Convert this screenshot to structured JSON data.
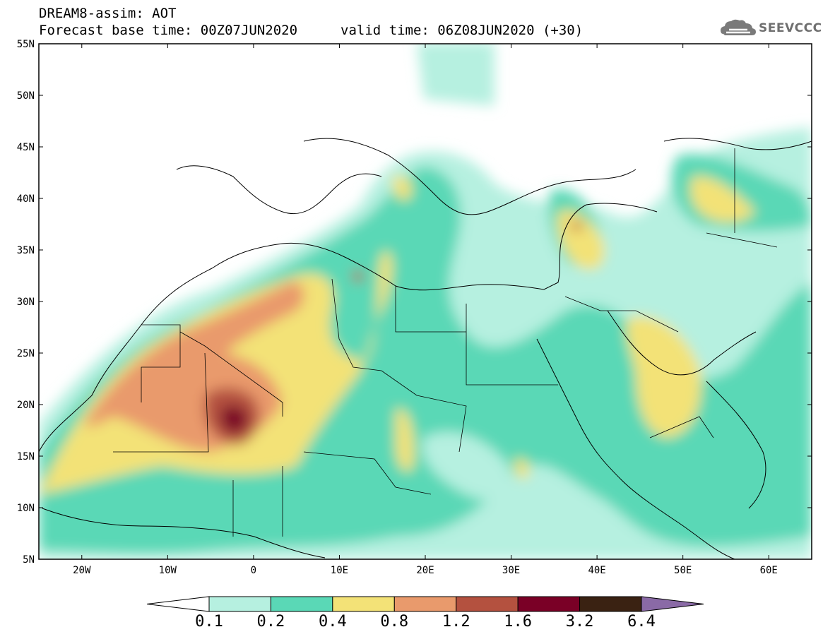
{
  "header": {
    "title": "DREAM8-assim: AOT",
    "base_time": "Forecast base time: 00Z07JUN2020",
    "valid_time": "valid time: 06Z08JUN2020 (+30)"
  },
  "logo": {
    "text": "SEEVCCC",
    "icon": "cloud-icon"
  },
  "map": {
    "variable": "Aerosol Optical Thickness",
    "lat_labels": [
      "55N",
      "50N",
      "45N",
      "40N",
      "35N",
      "30N",
      "25N",
      "20N",
      "15N",
      "10N",
      "5N"
    ],
    "lon_labels": [
      "20W",
      "10W",
      "0",
      "10E",
      "20E",
      "30E",
      "40E",
      "50E",
      "60E"
    ],
    "colors": {
      "0.1-0.2": "#b6f0e0",
      "0.2-0.4": "#5ad8b6",
      "0.4-0.8": "#f3e277",
      "0.8-1.2": "#e99a6c",
      "1.2-1.6": "#b4513f",
      "1.6-3.2": "#7a0026",
      "3.2-6.4": "#3a2212",
      ">6.4": "#8a6aa6",
      "border": "#000000"
    }
  },
  "colorbar": {
    "ticks": [
      "0.1",
      "0.2",
      "0.4",
      "0.8",
      "1.2",
      "1.6",
      "3.2",
      "6.4"
    ],
    "bins": [
      "#ffffff",
      "#b6f0e0",
      "#5ad8b6",
      "#f3e277",
      "#e99a6c",
      "#b4513f",
      "#7a0026",
      "#3a2212",
      "#8a6aa6"
    ]
  }
}
